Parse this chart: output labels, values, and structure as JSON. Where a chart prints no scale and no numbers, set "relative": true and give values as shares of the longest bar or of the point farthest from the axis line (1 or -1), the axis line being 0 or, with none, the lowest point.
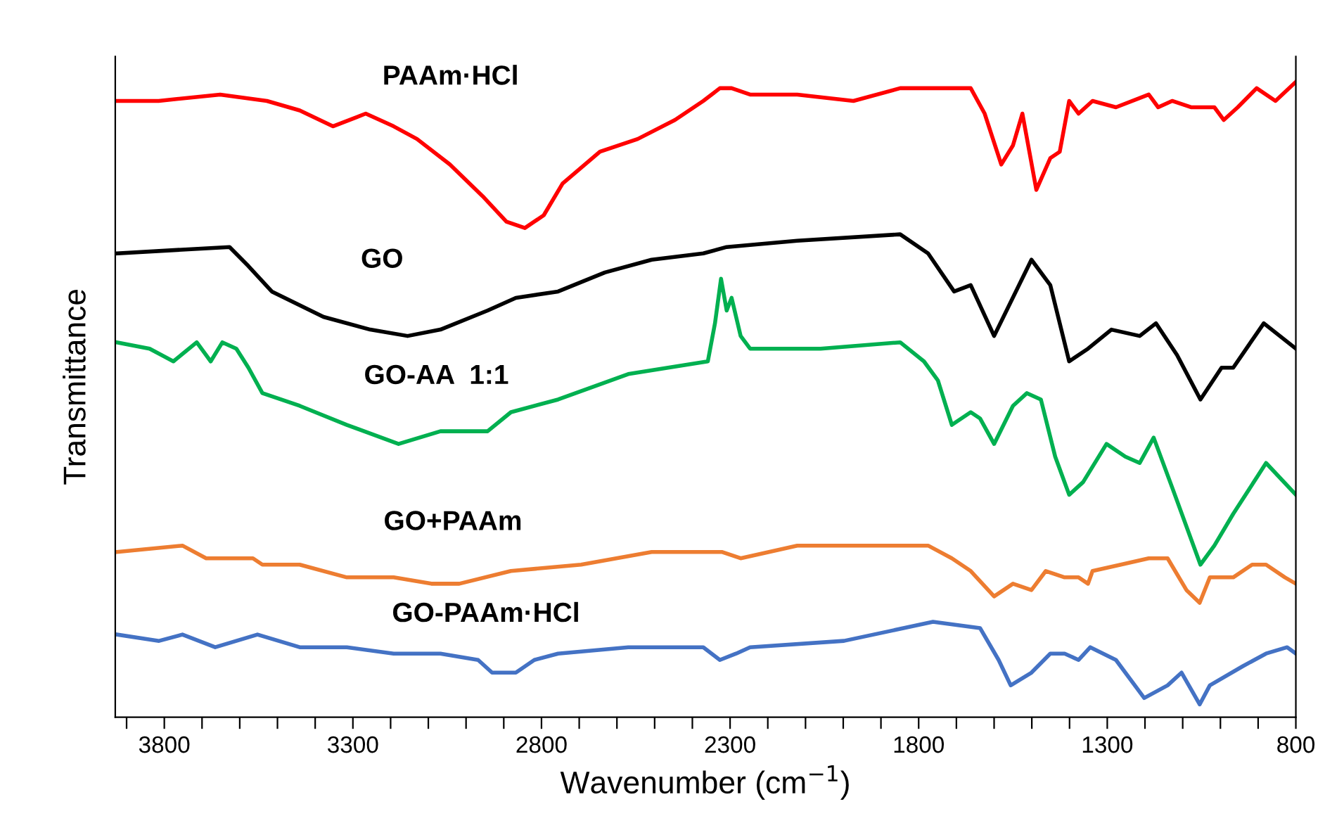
{
  "chart_data": {
    "type": "line",
    "relative": true,
    "xlabel": "Wavenumber (cm$^{−1}$)",
    "ylabel": "Transmittance",
    "xlim": [
      3930,
      800
    ],
    "xticks": [
      {
        "value": 3900,
        "label": null
      },
      3800,
      {
        "value": 3700,
        "label": null
      },
      {
        "value": 3600,
        "label": null
      },
      {
        "value": 3500,
        "label": null
      },
      {
        "value": 3400,
        "label": null
      },
      3300,
      {
        "value": 3200,
        "label": null
      },
      {
        "value": 3100,
        "label": null
      },
      {
        "value": 3000,
        "label": null
      },
      {
        "value": 2900,
        "label": null
      },
      2800,
      {
        "value": 2700,
        "label": null
      },
      {
        "value": 2600,
        "label": null
      },
      {
        "value": 2500,
        "label": null
      },
      {
        "value": 2400,
        "label": null
      },
      2300,
      {
        "value": 2200,
        "label": null
      },
      {
        "value": 2100,
        "label": null
      },
      {
        "value": 2000,
        "label": null
      },
      {
        "value": 1900,
        "label": null
      },
      1800,
      {
        "value": 1700,
        "label": null
      },
      {
        "value": 1600,
        "label": null
      },
      {
        "value": 1500,
        "label": null
      },
      {
        "value": 1400,
        "label": null
      },
      1300,
      {
        "value": 1200,
        "label": null
      },
      {
        "value": 1100,
        "label": null
      },
      {
        "value": 1000,
        "label": null
      },
      {
        "value": 900,
        "label": null
      },
      800
    ],
    "tick_labels": "x",
    "grid": false,
    "legend": false,
    "marker": "none",
    "line_style": "solid",
    "series": [
      {
        "name": "PAAm·HCl",
        "color": "#ff0000",
        "x": [
          3926,
          3815,
          3652,
          3528,
          3441,
          3353,
          3266,
          3192,
          3130,
          3043,
          2956,
          2893,
          2844,
          2794,
          2744,
          2645,
          2545,
          2446,
          2371,
          2327,
          2296,
          2247,
          2122,
          1973,
          1849,
          1662,
          1625,
          1581,
          1550,
          1525,
          1488,
          1451,
          1426,
          1401,
          1376,
          1339,
          1277,
          1190,
          1165,
          1128,
          1078,
          1016,
          991,
          954,
          904,
          854,
          800
        ],
        "values": [
          0.97,
          0.97,
          0.98,
          0.97,
          0.955,
          0.93,
          0.95,
          0.93,
          0.91,
          0.87,
          0.82,
          0.78,
          0.77,
          0.79,
          0.84,
          0.89,
          0.91,
          0.94,
          0.97,
          0.99,
          0.99,
          0.98,
          0.98,
          0.97,
          0.99,
          0.99,
          0.95,
          0.87,
          0.9,
          0.95,
          0.83,
          0.88,
          0.89,
          0.97,
          0.95,
          0.97,
          0.96,
          0.98,
          0.96,
          0.97,
          0.96,
          0.96,
          0.94,
          0.96,
          0.99,
          0.97,
          1.0
        ]
      },
      {
        "name": "GO",
        "color": "#000000",
        "x": [
          3926,
          3627,
          3577,
          3515,
          3378,
          3254,
          3155,
          3068,
          2943,
          2868,
          2756,
          2632,
          2508,
          2371,
          2309,
          2122,
          1849,
          1775,
          1706,
          1662,
          1600,
          1501,
          1451,
          1401,
          1351,
          1289,
          1214,
          1171,
          1115,
          1053,
          997,
          966,
          885,
          800
        ],
        "values": [
          0.73,
          0.74,
          0.71,
          0.67,
          0.63,
          0.61,
          0.6,
          0.61,
          0.64,
          0.66,
          0.67,
          0.7,
          0.72,
          0.73,
          0.74,
          0.75,
          0.76,
          0.73,
          0.67,
          0.68,
          0.6,
          0.72,
          0.68,
          0.56,
          0.58,
          0.61,
          0.6,
          0.62,
          0.57,
          0.5,
          0.55,
          0.55,
          0.62,
          0.58
        ]
      },
      {
        "name": "GO-AA  1:1",
        "color": "#00b050",
        "x": [
          3926,
          3839,
          3776,
          3714,
          3677,
          3646,
          3609,
          3577,
          3540,
          3441,
          3316,
          3179,
          3068,
          2943,
          2881,
          2756,
          2570,
          2359,
          2340,
          2324,
          2309,
          2296,
          2272,
          2247,
          2060,
          1849,
          1786,
          1749,
          1712,
          1662,
          1637,
          1600,
          1550,
          1513,
          1476,
          1438,
          1401,
          1364,
          1302,
          1252,
          1214,
          1177,
          1127,
          1053,
          1016,
          966,
          879,
          800
        ],
        "values": [
          0.59,
          0.58,
          0.56,
          0.59,
          0.56,
          0.59,
          0.58,
          0.55,
          0.51,
          0.49,
          0.46,
          0.43,
          0.45,
          0.45,
          0.48,
          0.5,
          0.54,
          0.56,
          0.62,
          0.69,
          0.64,
          0.66,
          0.6,
          0.58,
          0.58,
          0.59,
          0.56,
          0.53,
          0.46,
          0.48,
          0.47,
          0.43,
          0.49,
          0.51,
          0.5,
          0.41,
          0.35,
          0.37,
          0.43,
          0.41,
          0.4,
          0.44,
          0.36,
          0.24,
          0.27,
          0.32,
          0.4,
          0.35
        ]
      },
      {
        "name": "GO+PAAm",
        "color": "#ed7d31",
        "x": [
          3926,
          3752,
          3689,
          3565,
          3540,
          3441,
          3316,
          3192,
          3092,
          3018,
          2881,
          2695,
          2508,
          2334,
          2322,
          2272,
          2122,
          1849,
          1775,
          1712,
          1662,
          1600,
          1550,
          1501,
          1463,
          1413,
          1376,
          1351,
          1339,
          1264,
          1190,
          1140,
          1090,
          1055,
          1028,
          966,
          916,
          879,
          829,
          800
        ],
        "values": [
          0.26,
          0.27,
          0.25,
          0.25,
          0.24,
          0.24,
          0.22,
          0.22,
          0.21,
          0.21,
          0.23,
          0.24,
          0.26,
          0.26,
          0.26,
          0.25,
          0.27,
          0.27,
          0.27,
          0.25,
          0.23,
          0.19,
          0.21,
          0.2,
          0.23,
          0.22,
          0.22,
          0.21,
          0.23,
          0.24,
          0.25,
          0.25,
          0.2,
          0.18,
          0.22,
          0.22,
          0.24,
          0.24,
          0.22,
          0.21
        ]
      },
      {
        "name": "GO-PAAm·HCl",
        "color": "#4472c4",
        "x": [
          3926,
          3814,
          3752,
          3665,
          3553,
          3441,
          3316,
          3192,
          3068,
          2968,
          2931,
          2868,
          2819,
          2756,
          2570,
          2371,
          2327,
          2284,
          2247,
          1998,
          1762,
          1637,
          1588,
          1556,
          1501,
          1451,
          1413,
          1376,
          1345,
          1277,
          1202,
          1140,
          1103,
          1055,
          1028,
          941,
          879,
          823,
          800
        ],
        "values": [
          0.13,
          0.12,
          0.13,
          0.11,
          0.13,
          0.11,
          0.11,
          0.1,
          0.1,
          0.09,
          0.07,
          0.07,
          0.09,
          0.1,
          0.11,
          0.11,
          0.09,
          0.1,
          0.11,
          0.12,
          0.15,
          0.14,
          0.09,
          0.05,
          0.07,
          0.1,
          0.1,
          0.09,
          0.11,
          0.09,
          0.03,
          0.05,
          0.07,
          0.02,
          0.05,
          0.08,
          0.1,
          0.11,
          0.1
        ]
      }
    ]
  }
}
